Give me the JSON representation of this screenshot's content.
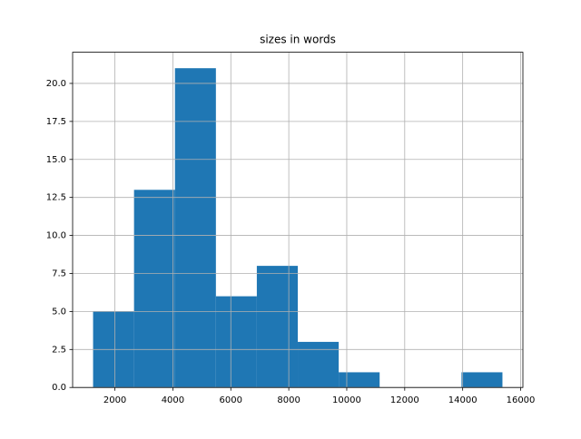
{
  "chart_data": {
    "type": "histogram",
    "title": "sizes in words",
    "bins": [
      1247,
      2660,
      4072,
      5485,
      6897,
      8310,
      9722,
      11135,
      12547,
      13960,
      15372
    ],
    "values": [
      5,
      13,
      21,
      6,
      8,
      3,
      1,
      0,
      0,
      1
    ],
    "color": "#1f77b4",
    "grid": true,
    "xlim": [
      541,
      16078
    ],
    "xticks": [
      2000,
      4000,
      6000,
      8000,
      10000,
      12000,
      14000,
      16000
    ],
    "ylim": [
      0,
      22.05
    ],
    "yticks": [
      {
        "value": 0,
        "label": "0.0"
      },
      {
        "value": 2.5,
        "label": "2.5"
      },
      {
        "value": 5,
        "label": "5.0"
      },
      {
        "value": 7.5,
        "label": "7.5"
      },
      {
        "value": 10,
        "label": "10.0"
      },
      {
        "value": 12.5,
        "label": "12.5"
      },
      {
        "value": 15,
        "label": "15.0"
      },
      {
        "value": 17.5,
        "label": "17.5"
      },
      {
        "value": 20,
        "label": "20.0"
      }
    ]
  }
}
